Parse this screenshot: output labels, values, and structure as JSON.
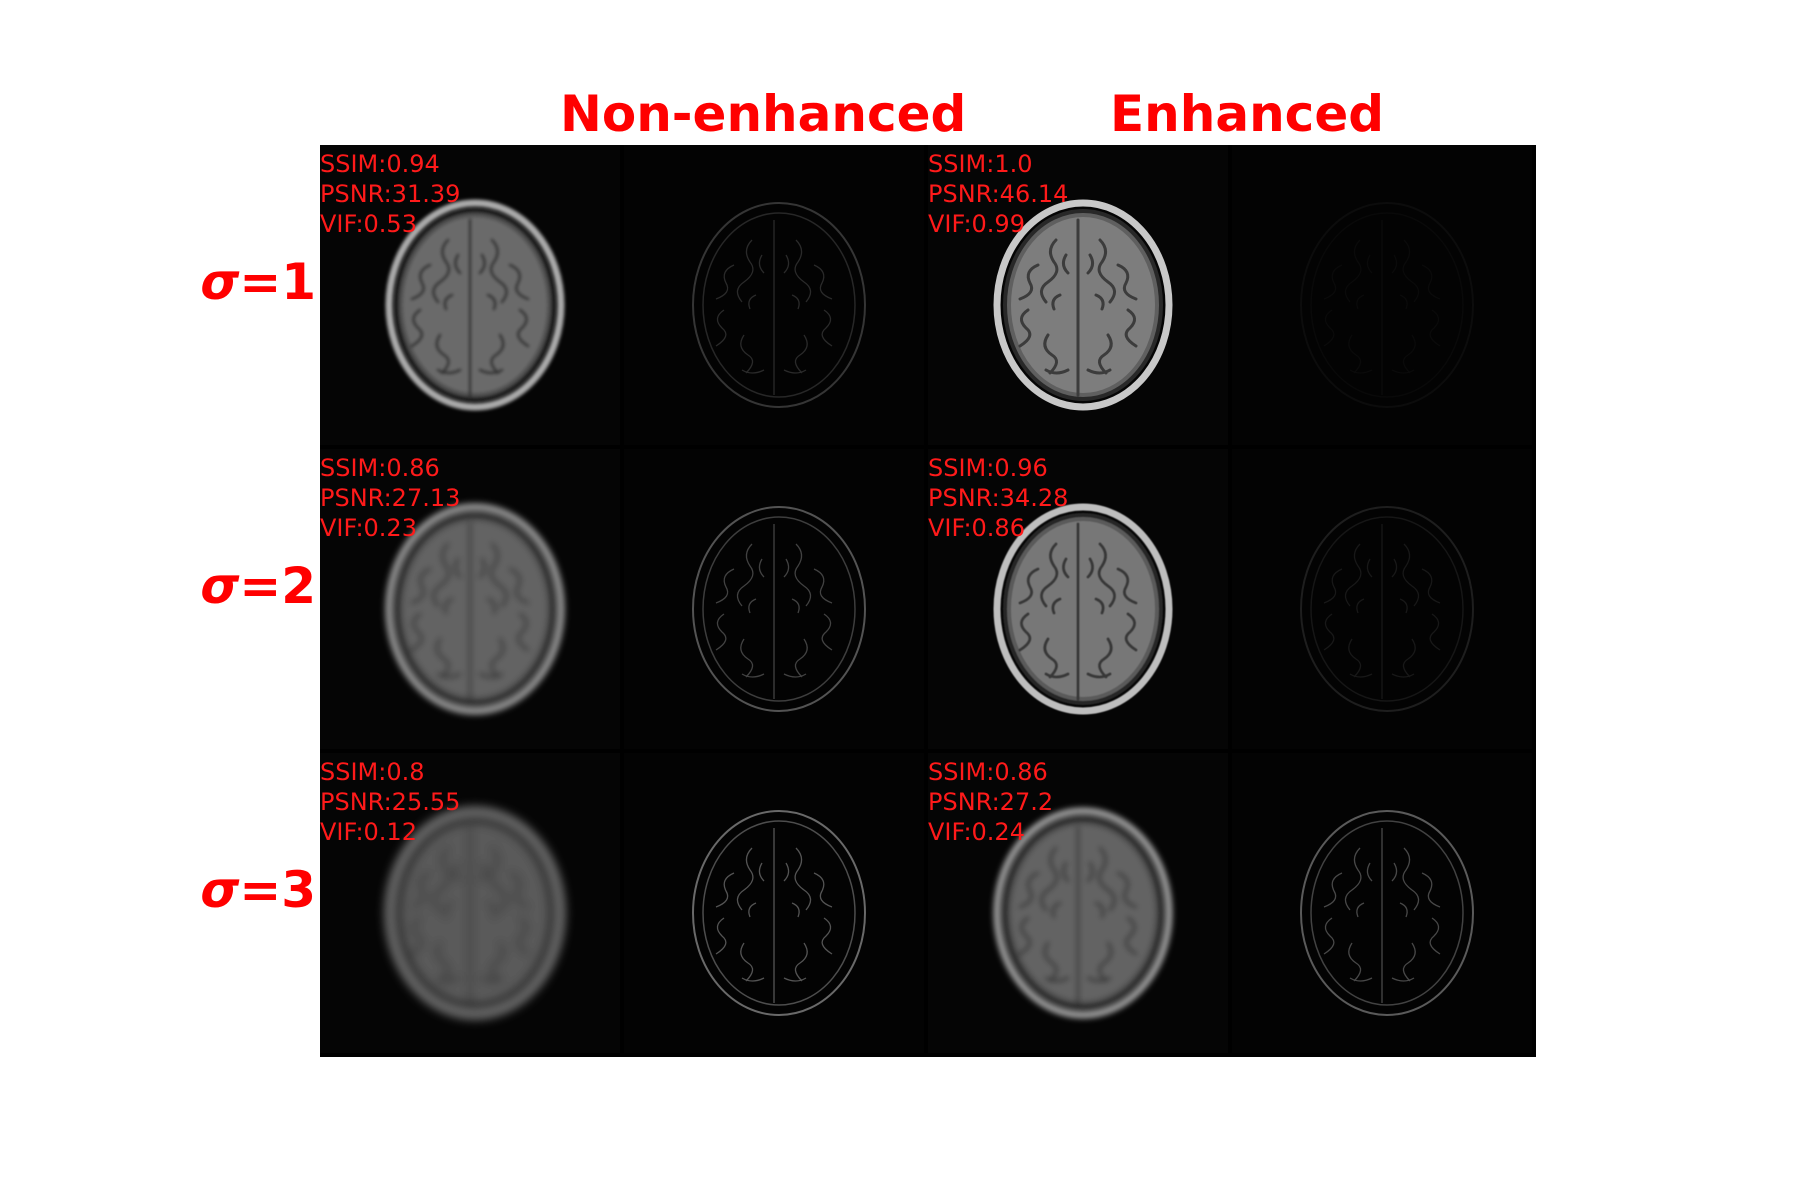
{
  "columns": {
    "non_enhanced": "Non-enhanced",
    "enhanced": "Enhanced"
  },
  "rows": [
    {
      "sigma_symbol": "σ",
      "sigma_value": "=1",
      "non_enhanced": {
        "ssim": "SSIM:0.94",
        "psnr": "PSNR:31.39",
        "vif": "VIF:0.53"
      },
      "enhanced": {
        "ssim": "SSIM:1.0",
        "psnr": "PSNR:46.14",
        "vif": "VIF:0.99"
      }
    },
    {
      "sigma_symbol": "σ",
      "sigma_value": "=2",
      "non_enhanced": {
        "ssim": "SSIM:0.86",
        "psnr": "PSNR:27.13",
        "vif": "VIF:0.23"
      },
      "enhanced": {
        "ssim": "SSIM:0.96",
        "psnr": "PSNR:34.28",
        "vif": "VIF:0.86"
      }
    },
    {
      "sigma_symbol": "σ",
      "sigma_value": "=3",
      "non_enhanced": {
        "ssim": "SSIM:0.8",
        "psnr": "PSNR:25.55",
        "vif": "VIF:0.12"
      },
      "enhanced": {
        "ssim": "SSIM:0.86",
        "psnr": "PSNR:27.2",
        "vif": "VIF:0.24"
      }
    }
  ],
  "colors": {
    "label": "#ff0000",
    "background": "#000000"
  }
}
